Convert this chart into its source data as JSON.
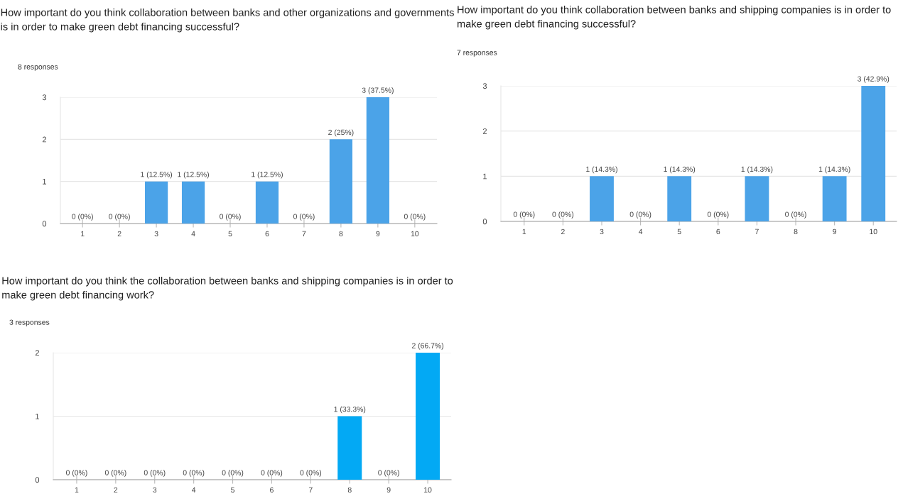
{
  "chart_data": [
    {
      "type": "bar",
      "title": "How important do you think collaboration between banks and other organizations and governments is in order to make green debt financing successful?",
      "subtitle": "8 responses",
      "categories": [
        "1",
        "2",
        "3",
        "4",
        "5",
        "6",
        "7",
        "8",
        "9",
        "10"
      ],
      "values": [
        0,
        0,
        1,
        1,
        0,
        1,
        0,
        2,
        3,
        0
      ],
      "value_labels": [
        "0 (0%)",
        "0 (0%)",
        "1 (12.5%)",
        "1 (12.5%)",
        "0 (0%)",
        "1 (12.5%)",
        "0 (0%)",
        "2 (25%)",
        "3 (37.5%)",
        "0 (0%)"
      ],
      "color": "#4ba3e8",
      "ylim": [
        0,
        3
      ],
      "yticks": [
        0,
        1,
        2,
        3
      ],
      "grid": "y"
    },
    {
      "type": "bar",
      "title": "How important do you think collaboration between banks and shipping companies is in order to make green debt financing successful?",
      "subtitle": "7 responses",
      "categories": [
        "1",
        "2",
        "3",
        "4",
        "5",
        "6",
        "7",
        "8",
        "9",
        "10"
      ],
      "values": [
        0,
        0,
        1,
        0,
        1,
        0,
        1,
        0,
        1,
        3
      ],
      "value_labels": [
        "0 (0%)",
        "0 (0%)",
        "1 (14.3%)",
        "0 (0%)",
        "1 (14.3%)",
        "0 (0%)",
        "1 (14.3%)",
        "0 (0%)",
        "1 (14.3%)",
        "3 (42.9%)"
      ],
      "color": "#4ba3e8",
      "ylim": [
        0,
        3
      ],
      "yticks": [
        0,
        1,
        2,
        3
      ],
      "grid": "y"
    },
    {
      "type": "bar",
      "title": "How important do you think the collaboration between banks and shipping companies is in order to make green debt financing work?",
      "subtitle": "3 responses",
      "categories": [
        "1",
        "2",
        "3",
        "4",
        "5",
        "6",
        "7",
        "8",
        "9",
        "10"
      ],
      "values": [
        0,
        0,
        0,
        0,
        0,
        0,
        0,
        1,
        0,
        2
      ],
      "value_labels": [
        "0 (0%)",
        "0 (0%)",
        "0 (0%)",
        "0 (0%)",
        "0 (0%)",
        "0 (0%)",
        "0 (0%)",
        "1 (33.3%)",
        "0 (0%)",
        "2 (66.7%)"
      ],
      "color": "#03a9f4",
      "ylim": [
        0,
        2
      ],
      "yticks": [
        0,
        1,
        2
      ],
      "grid": "y"
    }
  ]
}
